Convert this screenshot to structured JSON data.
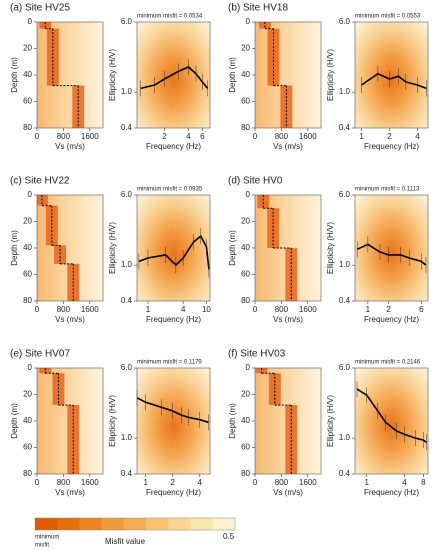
{
  "chart_data": [
    {
      "type": "profile",
      "title": "(a) Site HV25",
      "xlabel": "Vs (m/s)",
      "ylabel": "Depth (m)",
      "xlim": [
        0,
        2000
      ],
      "xticks": [
        0,
        800,
        1600
      ],
      "ylim": [
        0,
        80
      ],
      "yticks": [
        0,
        20,
        40,
        60,
        80
      ],
      "depths": [
        0,
        5,
        48
      ],
      "vs": [
        250,
        480,
        1250
      ]
    },
    {
      "type": "hv",
      "annotation": "minimum misfit = 0.0534",
      "xlabel": "Frequency (Hz)",
      "ylabel": "Ellipticity (H/V)",
      "log": true,
      "xlim": [
        0.9,
        7.5
      ],
      "xticks": [
        2,
        4,
        6
      ],
      "ylim": [
        0.4,
        6
      ],
      "yticks": [
        {
          "value": 0.4,
          "label": "0.4"
        },
        {
          "value": 1,
          "label": "1.0"
        },
        {
          "value": 6,
          "label": "6.0"
        }
      ],
      "x": [
        1,
        1.5,
        2,
        3,
        4,
        5,
        6,
        7
      ],
      "values": [
        1.1,
        1.2,
        1.4,
        1.7,
        1.9,
        1.6,
        1.3,
        1.1
      ]
    },
    {
      "type": "profile",
      "title": "(b) Site HV18",
      "xlabel": "Vs (m/s)",
      "ylabel": "Depth (m)",
      "xlim": [
        0,
        2000
      ],
      "xticks": [
        0,
        800,
        1600
      ],
      "ylim": [
        0,
        80
      ],
      "yticks": [
        0,
        20,
        40,
        60,
        80
      ],
      "depths": [
        0,
        5,
        48
      ],
      "vs": [
        300,
        560,
        950
      ]
    },
    {
      "type": "hv",
      "annotation": "minimum misfit = 0.0553",
      "xlabel": "Frequency (Hz)",
      "ylabel": "Ellipticity (H/V)",
      "log": true,
      "xlim": [
        0.85,
        5.2
      ],
      "xticks": [
        1,
        2,
        4
      ],
      "ylim": [
        0.4,
        6
      ],
      "yticks": [
        {
          "value": 0.4,
          "label": "0.4"
        },
        {
          "value": 1,
          "label": "1.0"
        },
        {
          "value": 6,
          "label": "6.0"
        }
      ],
      "x": [
        1,
        1.5,
        2,
        2.5,
        3,
        4,
        5
      ],
      "values": [
        1.2,
        1.6,
        1.4,
        1.5,
        1.3,
        1.2,
        1.1
      ]
    },
    {
      "type": "profile",
      "title": "(c) Site HV22",
      "xlabel": "Vs (m/s)",
      "ylabel": "Depth (m)",
      "xlim": [
        0,
        2000
      ],
      "xticks": [
        0,
        800,
        1600
      ],
      "ylim": [
        0,
        80
      ],
      "yticks": [
        0,
        20,
        40,
        60,
        80
      ],
      "depths": [
        0,
        8,
        38,
        52
      ],
      "vs": [
        150,
        450,
        700,
        1100
      ]
    },
    {
      "type": "hv",
      "annotation": "minimum misfit = 0.0935",
      "xlabel": "Frequency (Hz)",
      "ylabel": "Ellipticity (H/V)",
      "log": true,
      "xlim": [
        0.65,
        11.5
      ],
      "xticks": [
        1,
        4,
        10
      ],
      "ylim": [
        0.4,
        6
      ],
      "yticks": [
        {
          "value": 0.4,
          "label": "0.4"
        },
        {
          "value": 1,
          "label": "1.0"
        },
        {
          "value": 6,
          "label": "6.0"
        }
      ],
      "x": [
        0.7,
        1,
        2,
        3,
        4,
        6,
        8,
        10,
        11
      ],
      "values": [
        1.1,
        1.2,
        1.3,
        1.0,
        1.2,
        1.8,
        2.1,
        1.6,
        0.9
      ]
    },
    {
      "type": "profile",
      "title": "(d) Site HV0",
      "xlabel": "Vs (m/s)",
      "ylabel": "Depth (m)",
      "xlim": [
        0,
        2000
      ],
      "xticks": [
        0,
        800,
        1600
      ],
      "ylim": [
        0,
        80
      ],
      "yticks": [
        0,
        20,
        40,
        60,
        80
      ],
      "depths": [
        0,
        10,
        40
      ],
      "vs": [
        250,
        550,
        1100
      ]
    },
    {
      "type": "hv",
      "annotation": "minimum misfit = 0.1113",
      "xlabel": "Frequency (Hz)",
      "ylabel": "Ellipticity (H/V)",
      "log": true,
      "xlim": [
        0.65,
        7.5
      ],
      "xticks": [
        1,
        2,
        6
      ],
      "ylim": [
        0.4,
        6
      ],
      "yticks": [
        {
          "value": 0.4,
          "label": "0.4"
        },
        {
          "value": 1,
          "label": "1.0"
        },
        {
          "value": 6,
          "label": "6.0"
        }
      ],
      "x": [
        0.7,
        1,
        1.5,
        2,
        3,
        4,
        6,
        7
      ],
      "values": [
        1.5,
        1.7,
        1.4,
        1.3,
        1.3,
        1.2,
        1.1,
        1.0
      ]
    },
    {
      "type": "profile",
      "title": "(e) Site HV07",
      "xlabel": "Vs (m/s)",
      "ylabel": "Depth (m)",
      "xlim": [
        0,
        2000
      ],
      "xticks": [
        0,
        800,
        1600
      ],
      "ylim": [
        0,
        80
      ],
      "yticks": [
        0,
        20,
        40,
        60,
        80
      ],
      "depths": [
        0,
        4,
        28
      ],
      "vs": [
        250,
        650,
        1100
      ]
    },
    {
      "type": "hv",
      "annotation": "minimum misfit = 0.1179",
      "xlabel": "Frequency (Hz)",
      "ylabel": "Ellipticity (H/V)",
      "log": true,
      "xlim": [
        0.8,
        5.2
      ],
      "xticks": [
        1,
        2,
        4
      ],
      "ylim": [
        0.4,
        6
      ],
      "yticks": [
        {
          "value": 0.4,
          "label": "0.4"
        },
        {
          "value": 1,
          "label": "1.0"
        },
        {
          "value": 6,
          "label": "6.0"
        }
      ],
      "x": [
        0.8,
        1,
        1.5,
        2,
        2.5,
        3,
        4,
        5
      ],
      "values": [
        2.8,
        2.5,
        2.2,
        2.0,
        1.8,
        1.7,
        1.6,
        1.5
      ]
    },
    {
      "type": "profile",
      "title": "(f) Site HV03",
      "xlabel": "Vs (m/s)",
      "ylabel": "Depth (m)",
      "xlim": [
        0,
        2000
      ],
      "xticks": [
        0,
        800,
        1600
      ],
      "ylim": [
        0,
        80
      ],
      "yticks": [
        0,
        20,
        40,
        60,
        80
      ],
      "depths": [
        0,
        4,
        28
      ],
      "vs": [
        200,
        600,
        1100
      ]
    },
    {
      "type": "hv",
      "annotation": "minimum misfit = 0.2146",
      "xlabel": "Frequency (Hz)",
      "ylabel": "Ellipticity (H/V)",
      "log": true,
      "xlim": [
        0.65,
        9.5
      ],
      "xticks": [
        1,
        4,
        8
      ],
      "ylim": [
        0.4,
        6
      ],
      "yticks": [
        {
          "value": 0.4,
          "label": "0.4"
        },
        {
          "value": 1,
          "label": "1.0"
        },
        {
          "value": 6,
          "label": "6.0"
        }
      ],
      "x": [
        0.7,
        1,
        1.5,
        2,
        3,
        4,
        6,
        8,
        9
      ],
      "values": [
        3.5,
        3.0,
        2.0,
        1.5,
        1.2,
        1.1,
        1.0,
        0.95,
        0.9
      ]
    },
    {
      "type": "colorbar",
      "min_label": [
        "minimum",
        "misfit"
      ],
      "label": "Misfit value",
      "max_label": "0.5",
      "colors": [
        "#e05a00",
        "#e8700c",
        "#ee8420",
        "#f29a3a",
        "#f5ae55",
        "#f8c272",
        "#fad690",
        "#fce6b0",
        "#fdf2cf"
      ]
    }
  ]
}
